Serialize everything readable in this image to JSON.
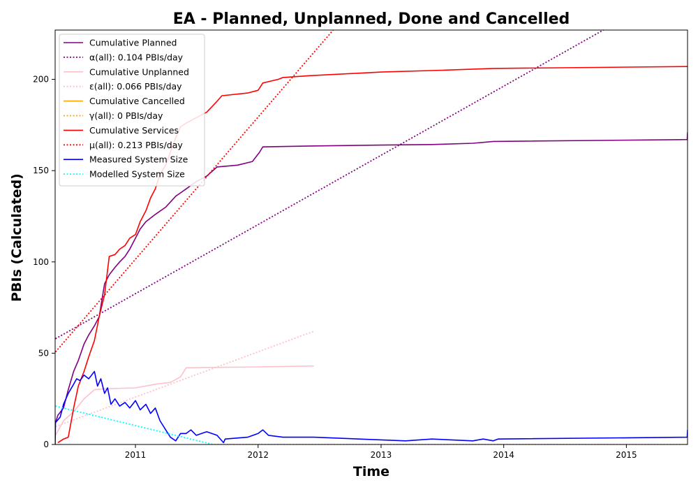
{
  "chart_data": {
    "type": "line",
    "title": "EA - Planned, Unplanned, Done  and Cancelled",
    "xlabel": "Time",
    "ylabel": "PBIs (Calculated)",
    "xlim": [
      "2010-05-07",
      "2015-07-02"
    ],
    "ylim": [
      0,
      227
    ],
    "x_ticks": [
      "2011",
      "2012",
      "2013",
      "2014",
      "2015"
    ],
    "x_tick_dates": [
      "2011-01-01",
      "2012-01-01",
      "2013-01-01",
      "2014-01-01",
      "2015-01-01"
    ],
    "y_ticks": [
      0,
      50,
      100,
      150,
      200
    ],
    "grid": false,
    "legend_position": "upper-left",
    "series": [
      {
        "name": "Cumulative Planned",
        "color": "#800080",
        "style": "solid",
        "points": [
          [
            "2010-05-08",
            12
          ],
          [
            "2010-05-15",
            16
          ],
          [
            "2010-06-01",
            20
          ],
          [
            "2010-06-15",
            30
          ],
          [
            "2010-07-01",
            40
          ],
          [
            "2010-07-15",
            46
          ],
          [
            "2010-08-01",
            55
          ],
          [
            "2010-08-15",
            60
          ],
          [
            "2010-09-01",
            65
          ],
          [
            "2010-09-15",
            70
          ],
          [
            "2010-10-01",
            88
          ],
          [
            "2010-10-15",
            93
          ],
          [
            "2010-11-01",
            97
          ],
          [
            "2010-11-15",
            100
          ],
          [
            "2010-12-01",
            103
          ],
          [
            "2010-12-15",
            107
          ],
          [
            "2011-01-01",
            113
          ],
          [
            "2011-01-15",
            118
          ],
          [
            "2011-02-01",
            122
          ],
          [
            "2011-03-01",
            126
          ],
          [
            "2011-04-01",
            130
          ],
          [
            "2011-05-01",
            136
          ],
          [
            "2011-06-01",
            140
          ],
          [
            "2011-07-01",
            144
          ],
          [
            "2011-08-01",
            147
          ],
          [
            "2011-09-01",
            152
          ],
          [
            "2011-11-01",
            153
          ],
          [
            "2011-12-15",
            155
          ],
          [
            "2012-01-05",
            160
          ],
          [
            "2012-01-15",
            163
          ],
          [
            "2012-06-01",
            163.5
          ],
          [
            "2013-01-01",
            164
          ],
          [
            "2013-06-01",
            164.3
          ],
          [
            "2013-10-01",
            165
          ],
          [
            "2013-12-01",
            166
          ],
          [
            "2015-07-01",
            167
          ],
          [
            "2015-07-02",
            171
          ]
        ]
      },
      {
        "name": "α(all): 0.104 PBIs/day",
        "color": "#800080",
        "style": "dotted",
        "points": [
          [
            "2010-05-08",
            57.9
          ],
          [
            "2015-07-02",
            253
          ]
        ]
      },
      {
        "name": "Cumulative Unplanned",
        "color": "#ffc0cb",
        "style": "solid",
        "points": [
          [
            "2010-05-08",
            5
          ],
          [
            "2010-06-01",
            13
          ],
          [
            "2010-07-01",
            18
          ],
          [
            "2010-08-01",
            25
          ],
          [
            "2010-09-01",
            30
          ],
          [
            "2010-10-01",
            30.5
          ],
          [
            "2011-01-01",
            31
          ],
          [
            "2011-03-01",
            33
          ],
          [
            "2011-04-15",
            34
          ],
          [
            "2011-05-15",
            37
          ],
          [
            "2011-06-01",
            42
          ],
          [
            "2011-08-01",
            42.2
          ],
          [
            "2012-01-01",
            42.5
          ],
          [
            "2012-06-15",
            43
          ]
        ]
      },
      {
        "name": "ε(all): 0.066 PBIs/day",
        "color": "#ffc0cb",
        "style": "dotted",
        "points": [
          [
            "2010-05-08",
            9.8
          ],
          [
            "2012-06-15",
            62
          ]
        ]
      },
      {
        "name": "Cumulative Cancelled",
        "color": "#ffa500",
        "style": "solid",
        "points": []
      },
      {
        "name": "γ(all): 0 PBIs/day",
        "color": "#ffa500",
        "style": "dotted",
        "points": []
      },
      {
        "name": "Cumulative Services",
        "color": "#ff0000",
        "style": "solid",
        "points": [
          [
            "2010-05-15",
            1
          ],
          [
            "2010-06-01",
            3
          ],
          [
            "2010-06-15",
            4
          ],
          [
            "2010-07-01",
            20
          ],
          [
            "2010-07-15",
            32
          ],
          [
            "2010-08-01",
            40
          ],
          [
            "2010-08-15",
            48
          ],
          [
            "2010-09-01",
            57
          ],
          [
            "2010-09-15",
            70
          ],
          [
            "2010-10-01",
            82
          ],
          [
            "2010-10-15",
            103
          ],
          [
            "2010-11-01",
            104
          ],
          [
            "2010-11-15",
            107
          ],
          [
            "2010-12-01",
            109
          ],
          [
            "2010-12-15",
            113
          ],
          [
            "2011-01-01",
            115
          ],
          [
            "2011-01-15",
            122
          ],
          [
            "2011-02-01",
            128
          ],
          [
            "2011-02-15",
            135
          ],
          [
            "2011-03-01",
            140
          ],
          [
            "2011-03-15",
            148
          ],
          [
            "2011-04-01",
            153
          ],
          [
            "2011-04-15",
            160
          ],
          [
            "2011-05-01",
            168
          ],
          [
            "2011-05-15",
            174
          ],
          [
            "2011-06-01",
            176
          ],
          [
            "2011-07-01",
            179
          ],
          [
            "2011-08-01",
            182
          ],
          [
            "2011-09-01",
            188
          ],
          [
            "2011-09-15",
            191
          ],
          [
            "2011-12-01",
            192.5
          ],
          [
            "2012-01-01",
            194
          ],
          [
            "2012-01-15",
            198
          ],
          [
            "2012-03-01",
            200
          ],
          [
            "2012-03-15",
            201
          ],
          [
            "2012-06-01",
            202
          ],
          [
            "2013-01-01",
            204
          ],
          [
            "2013-07-01",
            205
          ],
          [
            "2013-12-01",
            206
          ],
          [
            "2015-07-02",
            207
          ]
        ]
      },
      {
        "name": "μ(all): 0.213 PBIs/day",
        "color": "#ff0000",
        "style": "dotted",
        "points": [
          [
            "2010-05-08",
            50.7
          ],
          [
            "2015-07-02",
            452
          ]
        ]
      },
      {
        "name": "Measured System Size",
        "color": "#0000ff",
        "style": "solid",
        "points": [
          [
            "2010-05-07",
            0
          ],
          [
            "2010-05-08",
            12
          ],
          [
            "2010-05-22",
            15
          ],
          [
            "2010-06-01",
            22
          ],
          [
            "2010-06-15",
            28
          ],
          [
            "2010-07-01",
            33
          ],
          [
            "2010-07-10",
            36
          ],
          [
            "2010-07-20",
            35
          ],
          [
            "2010-08-01",
            38
          ],
          [
            "2010-08-15",
            36
          ],
          [
            "2010-09-01",
            40
          ],
          [
            "2010-09-10",
            32
          ],
          [
            "2010-09-20",
            36
          ],
          [
            "2010-10-01",
            28
          ],
          [
            "2010-10-10",
            31
          ],
          [
            "2010-10-20",
            22
          ],
          [
            "2010-11-01",
            25
          ],
          [
            "2010-11-15",
            21
          ],
          [
            "2010-12-01",
            23
          ],
          [
            "2010-12-15",
            20
          ],
          [
            "2011-01-01",
            24
          ],
          [
            "2011-01-15",
            19
          ],
          [
            "2011-02-01",
            22
          ],
          [
            "2011-02-15",
            17
          ],
          [
            "2011-03-01",
            20
          ],
          [
            "2011-03-15",
            13
          ],
          [
            "2011-04-01",
            8
          ],
          [
            "2011-04-15",
            4
          ],
          [
            "2011-05-01",
            2
          ],
          [
            "2011-05-15",
            6
          ],
          [
            "2011-06-01",
            6
          ],
          [
            "2011-06-15",
            8
          ],
          [
            "2011-07-01",
            5
          ],
          [
            "2011-08-01",
            7
          ],
          [
            "2011-09-01",
            5
          ],
          [
            "2011-09-20",
            1
          ],
          [
            "2011-09-25",
            3
          ],
          [
            "2011-12-01",
            4
          ],
          [
            "2012-01-01",
            6
          ],
          [
            "2012-01-15",
            8
          ],
          [
            "2012-02-01",
            5
          ],
          [
            "2012-03-15",
            4
          ],
          [
            "2012-06-15",
            4
          ],
          [
            "2013-03-15",
            2
          ],
          [
            "2013-06-01",
            3
          ],
          [
            "2013-10-01",
            2
          ],
          [
            "2013-11-01",
            3
          ],
          [
            "2013-12-01",
            2
          ],
          [
            "2013-12-15",
            3
          ],
          [
            "2015-07-01",
            4
          ],
          [
            "2015-07-02",
            8
          ]
        ]
      },
      {
        "name": "Modelled System Size",
        "color": "#00ffff",
        "style": "dotted",
        "points": [
          [
            "2010-05-08",
            21
          ],
          [
            "2011-08-20",
            0
          ],
          [
            "2015-07-02",
            0
          ]
        ]
      }
    ]
  }
}
